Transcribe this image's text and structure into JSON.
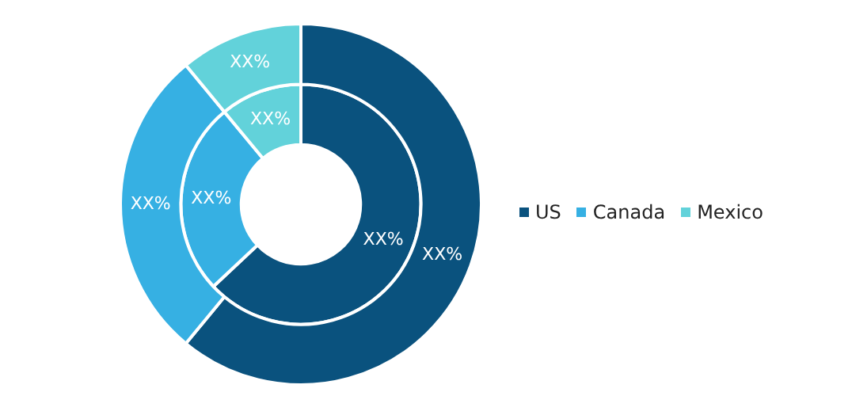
{
  "chart_data": {
    "type": "donut",
    "categories": [
      "US",
      "Canada",
      "Mexico"
    ],
    "colors": [
      "#0a527e",
      "#36b0e3",
      "#62d2da"
    ],
    "series": [
      {
        "values": [
          61,
          28,
          11
        ],
        "value_labels": [
          "XX%",
          "XX%",
          "XX%"
        ]
      },
      {
        "values": [
          63,
          26,
          11
        ],
        "value_labels": [
          "XX%",
          "XX%",
          "XX%"
        ]
      }
    ],
    "legend": "right"
  }
}
